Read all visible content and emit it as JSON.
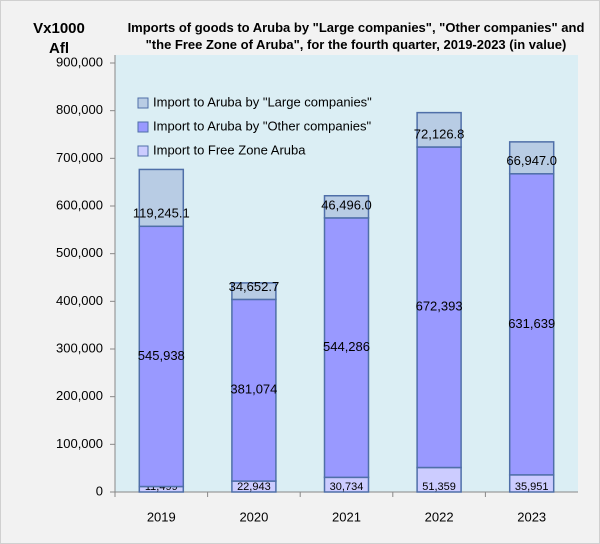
{
  "chart_data": {
    "type": "stacked_bar",
    "title": "Imports of goods to Aruba by \"Large companies\", \"Other companies\" and \"the Free Zone of Aruba\", for the fourth quarter, 2019-2023 (in value)",
    "y_label": "Vx1000 Afl",
    "categories": [
      "2019",
      "2020",
      "2021",
      "2022",
      "2023"
    ],
    "series": [
      {
        "name": "Import to Free Zone Aruba",
        "color": "#ccccff",
        "values": [
          11499,
          22943,
          30734,
          51359,
          35951
        ],
        "value_labels": [
          "11,499",
          "22,943",
          "30,734",
          "51,359",
          "35,951"
        ]
      },
      {
        "name": "Import to Aruba by \"Other companies\"",
        "color": "#9999ff",
        "values": [
          545938,
          381074,
          544286,
          672393,
          631639
        ],
        "value_labels": [
          "545,938",
          "381,074",
          "544,286",
          "672,393",
          "631,639"
        ]
      },
      {
        "name": "Import to Aruba by \"Large companies\"",
        "color": "#b8cce4",
        "values": [
          119245.1,
          34652.7,
          46496.0,
          72126.8,
          66947.0
        ],
        "value_labels": [
          "119,245.1",
          "34,652.7",
          "46,496.0",
          "72,126.8",
          "66,947.0"
        ]
      }
    ],
    "ylim": [
      0,
      900000
    ],
    "yticks": [
      {
        "value": 0,
        "label": "0"
      },
      {
        "value": 100000,
        "label": "100,000"
      },
      {
        "value": 200000,
        "label": "200,000"
      },
      {
        "value": 300000,
        "label": "300,000"
      },
      {
        "value": 400000,
        "label": "400,000"
      },
      {
        "value": 500000,
        "label": "500,000"
      },
      {
        "value": 600000,
        "label": "600,000"
      },
      {
        "value": 700000,
        "label": "700,000"
      },
      {
        "value": 800000,
        "label": "800,000"
      },
      {
        "value": 900000,
        "label": "900,000"
      }
    ],
    "legend": "upper left"
  }
}
